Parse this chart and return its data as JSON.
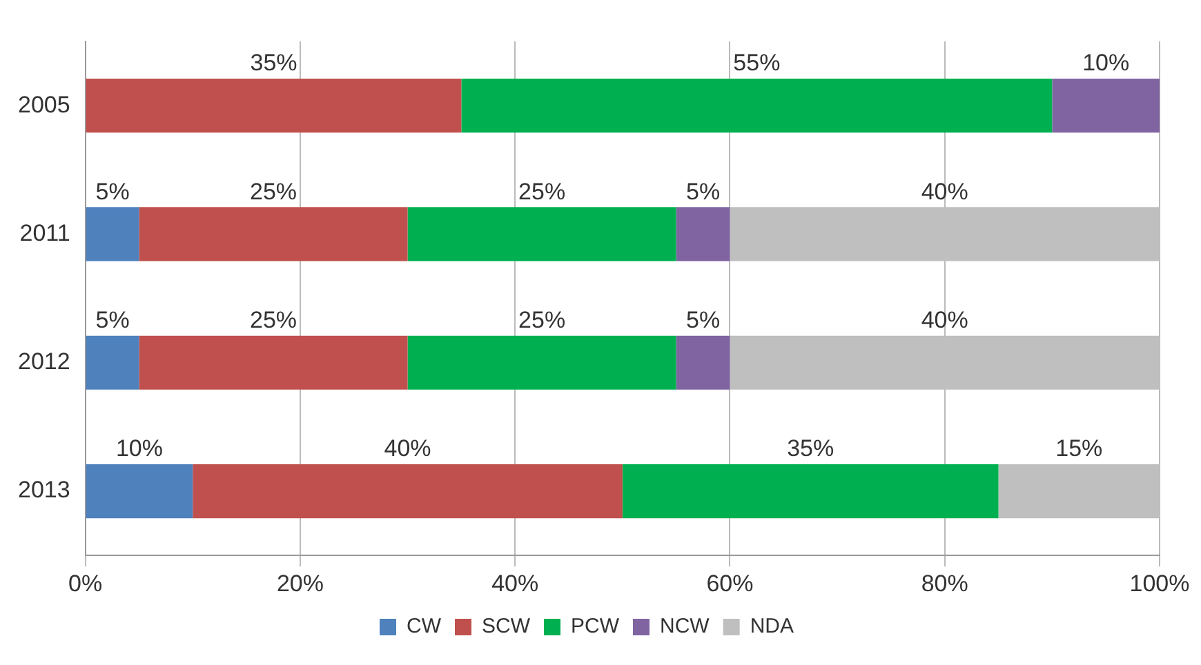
{
  "chart_data": {
    "type": "bar",
    "orientation": "horizontal",
    "stacked": true,
    "categories": [
      "2005",
      "2011",
      "2012",
      "2013"
    ],
    "series": [
      {
        "name": "CW",
        "color": "#4f81bd",
        "values": [
          0,
          5,
          5,
          10
        ],
        "value_labels": [
          null,
          "5%",
          "5%",
          "10%"
        ]
      },
      {
        "name": "SCW",
        "color": "#c0504d",
        "values": [
          35,
          25,
          25,
          40
        ],
        "value_labels": [
          "35%",
          "25%",
          "25%",
          "40%"
        ]
      },
      {
        "name": "PCW",
        "color": "#00b050",
        "values": [
          55,
          25,
          25,
          35
        ],
        "value_labels": [
          "55%",
          "25%",
          "25%",
          "35%"
        ]
      },
      {
        "name": "NCW",
        "color": "#8064a2",
        "values": [
          10,
          5,
          5,
          0
        ],
        "value_labels": [
          "10%",
          "5%",
          "5%",
          null
        ]
      },
      {
        "name": "NDA",
        "color": "#bfbfbf",
        "values": [
          0,
          40,
          40,
          15
        ],
        "value_labels": [
          null,
          "40%",
          "40%",
          "15%"
        ]
      }
    ],
    "xlim": [
      0,
      100
    ],
    "xticks": [
      {
        "value": 0,
        "label": "0%"
      },
      {
        "value": 20,
        "label": "20%"
      },
      {
        "value": 40,
        "label": "40%"
      },
      {
        "value": 60,
        "label": "60%"
      },
      {
        "value": 80,
        "label": "80%"
      },
      {
        "value": 100,
        "label": "100%"
      }
    ],
    "grid": "x",
    "legend": "bottom"
  }
}
